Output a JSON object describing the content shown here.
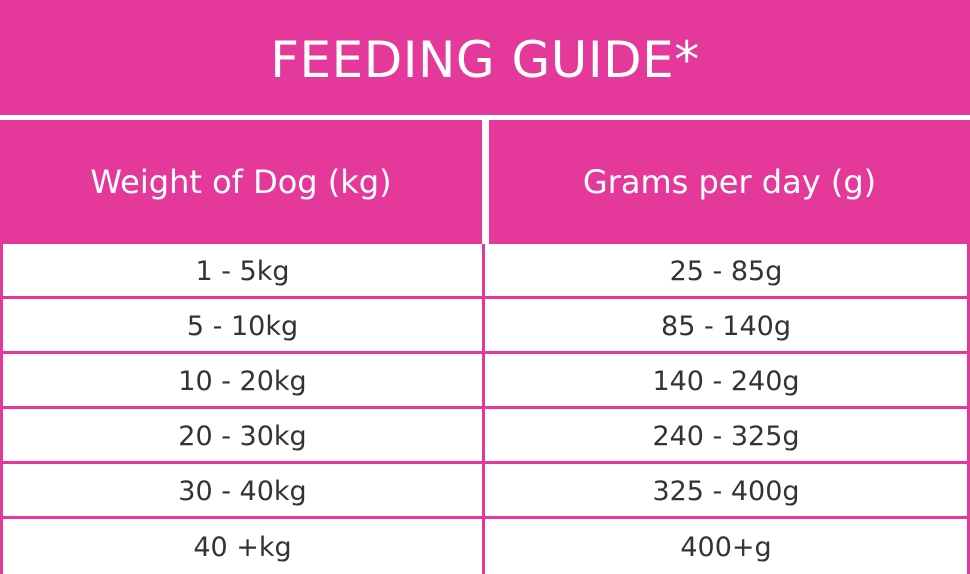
{
  "title": "FEEDING GUIDE*",
  "headers": {
    "weight": "Weight of Dog (kg)",
    "grams": "Grams per day (g)"
  },
  "rows": [
    {
      "weight": "1 - 5kg",
      "grams": "25 - 85g"
    },
    {
      "weight": "5 - 10kg",
      "grams": "85 - 140g"
    },
    {
      "weight": "10 - 20kg",
      "grams": "140 - 240g"
    },
    {
      "weight": "20 - 30kg",
      "grams": "240 - 325g"
    },
    {
      "weight": "30 - 40kg",
      "grams": "325 - 400g"
    },
    {
      "weight": "40 +kg",
      "grams": "400+g"
    }
  ],
  "colors": {
    "accent": "#e4399a",
    "text": "#333333",
    "header_text": "#ffffff"
  }
}
